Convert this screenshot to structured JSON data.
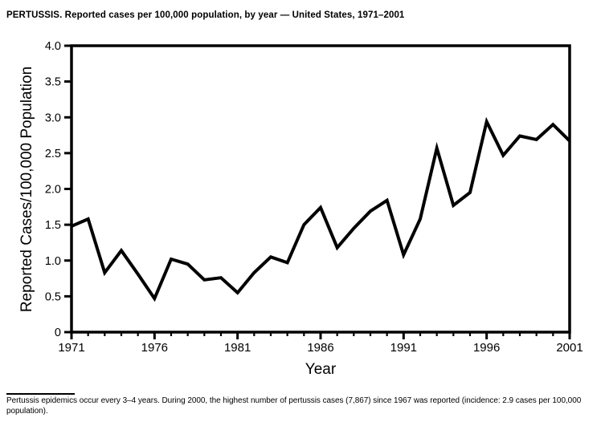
{
  "title": "PERTUSSIS. Reported cases per 100,000 population, by year — United States, 1971–2001",
  "footnote": "Pertussis epidemics occur every 3–4 years. During 2000, the highest number of pertussis cases (7,867) since 1967 was reported (incidence: 2.9 cases per 100,000 population).",
  "colors": {
    "foreground": "#000000",
    "background": "#ffffff",
    "line": "#000000"
  },
  "chart_data": {
    "type": "line",
    "title": "PERTUSSIS. Reported cases per 100,000 population, by year — United States, 1971–2001",
    "xlabel": "Year",
    "ylabel": "Reported Cases/100,000 Population",
    "xlim": [
      1971,
      2001
    ],
    "ylim": [
      0,
      4.0
    ],
    "grid": false,
    "legend": "none",
    "x": [
      1971,
      1972,
      1973,
      1974,
      1975,
      1976,
      1977,
      1978,
      1979,
      1980,
      1981,
      1982,
      1983,
      1984,
      1985,
      1986,
      1987,
      1988,
      1989,
      1990,
      1991,
      1992,
      1993,
      1994,
      1995,
      1996,
      1997,
      1998,
      1999,
      2000,
      2001
    ],
    "values": [
      1.48,
      1.58,
      0.83,
      1.14,
      0.81,
      0.47,
      1.02,
      0.95,
      0.73,
      0.76,
      0.55,
      0.83,
      1.05,
      0.97,
      1.5,
      1.74,
      1.18,
      1.45,
      1.69,
      1.84,
      1.08,
      1.58,
      2.57,
      1.77,
      1.95,
      2.94,
      2.47,
      2.74,
      2.69,
      2.9,
      2.67
    ],
    "xticks": {
      "major": [
        1971,
        1976,
        1981,
        1986,
        1991,
        1996,
        2001
      ],
      "minor_every": 1
    },
    "yticks": {
      "values": [
        0,
        0.5,
        1.0,
        1.5,
        2.0,
        2.5,
        3.0,
        3.5,
        4.0
      ],
      "labels": [
        "0",
        "0.5",
        "1.0",
        "1.5",
        "2.0",
        "2.5",
        "3.0",
        "3.5",
        "4.0"
      ]
    },
    "line": {
      "color": "#000000",
      "width": 4
    }
  }
}
